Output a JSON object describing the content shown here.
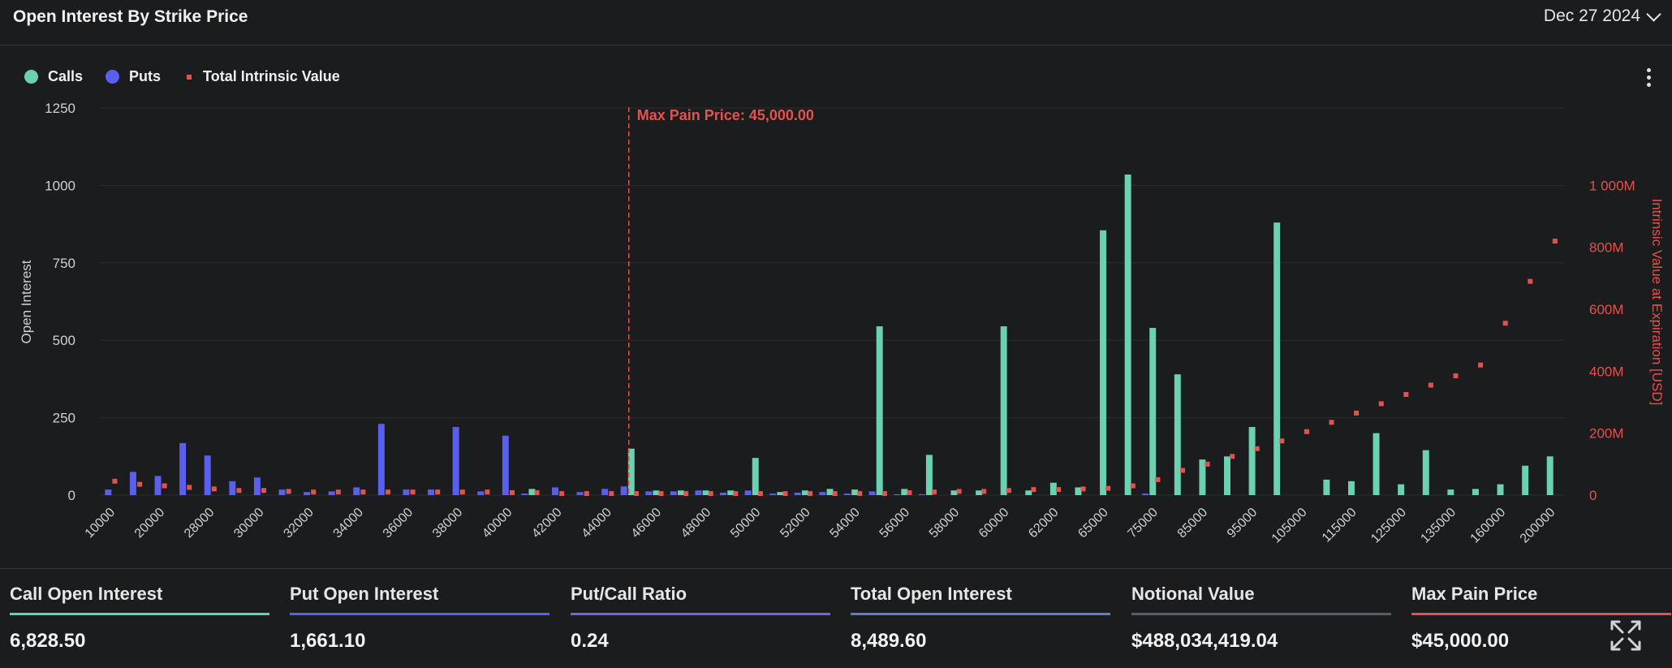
{
  "header": {
    "title": "Open Interest By Strike Price",
    "date": "Dec 27 2024"
  },
  "colors": {
    "calls": "#6ad2b0",
    "puts": "#5a5ff0",
    "intrinsic": "#e2534f",
    "background": "#1b1c1e"
  },
  "legend": {
    "calls": "Calls",
    "puts": "Puts",
    "intrinsic": "Total Intrinsic Value"
  },
  "icons": {
    "menu": "kebab-menu-icon",
    "date_dropdown": "chevron-down-icon",
    "expand": "expand-arrows-icon"
  },
  "chart_data": {
    "type": "bar",
    "title": "",
    "max_pain_label": "Max Pain Price: 45,000.00",
    "max_pain_category": "45000",
    "ylabel": "Open Interest",
    "y2label": "Intrinsic Value at Expiration [USD]",
    "ylim": [
      0,
      1250
    ],
    "y2lim": [
      0,
      1250
    ],
    "yticks": [
      "0",
      "250",
      "500",
      "750",
      "1000",
      "1250"
    ],
    "y2ticks": [
      "0",
      "200M",
      "400M",
      "600M",
      "800M",
      "1 000M"
    ],
    "y2tick_values": [
      0,
      200,
      400,
      600,
      800,
      1000
    ],
    "y2unit": "M USD",
    "xtick_labels": [
      "10000",
      "20000",
      "28000",
      "30000",
      "32000",
      "34000",
      "36000",
      "38000",
      "40000",
      "42000",
      "44000",
      "46000",
      "48000",
      "50000",
      "52000",
      "54000",
      "56000",
      "58000",
      "60000",
      "62000",
      "65000",
      "75000",
      "85000",
      "95000",
      "105000",
      "115000",
      "125000",
      "135000",
      "160000",
      "200000"
    ],
    "categories": [
      "10000",
      "15000",
      "20000",
      "25000",
      "28000",
      "29000",
      "30000",
      "31000",
      "32000",
      "33000",
      "34000",
      "35000",
      "36000",
      "37000",
      "38000",
      "39000",
      "40000",
      "41000",
      "42000",
      "43000",
      "44000",
      "45000",
      "46000",
      "47000",
      "48000",
      "49000",
      "50000",
      "51000",
      "52000",
      "53000",
      "54000",
      "55000",
      "56000",
      "57000",
      "58000",
      "59000",
      "60000",
      "61000",
      "62000",
      "64000",
      "65000",
      "70000",
      "75000",
      "80000",
      "85000",
      "90000",
      "95000",
      "100000",
      "105000",
      "110000",
      "115000",
      "120000",
      "125000",
      "130000",
      "135000",
      "140000",
      "160000",
      "180000",
      "200000"
    ],
    "series": [
      {
        "name": "Calls",
        "axis": "left",
        "values": [
          0,
          0,
          0,
          0,
          0,
          0,
          0,
          0,
          0,
          0,
          0,
          0,
          0,
          0,
          0,
          0,
          0,
          20,
          0,
          0,
          0,
          150,
          15,
          15,
          15,
          15,
          120,
          10,
          15,
          20,
          18,
          545,
          20,
          130,
          15,
          15,
          545,
          15,
          40,
          25,
          855,
          1035,
          540,
          390,
          115,
          125,
          220,
          880,
          0,
          50,
          45,
          200,
          35,
          145,
          18,
          20,
          35,
          95,
          125
        ]
      },
      {
        "name": "Puts",
        "axis": "left",
        "values": [
          18,
          75,
          62,
          168,
          128,
          45,
          57,
          18,
          10,
          12,
          25,
          230,
          18,
          18,
          220,
          12,
          192,
          5,
          25,
          10,
          20,
          28,
          12,
          12,
          15,
          8,
          15,
          5,
          8,
          10,
          5,
          12,
          3,
          3,
          0,
          0,
          0,
          0,
          0,
          0,
          0,
          0,
          5,
          0,
          0,
          0,
          0,
          0,
          0,
          0,
          0,
          0,
          0,
          0,
          0,
          0,
          0,
          0,
          0
        ]
      },
      {
        "name": "Total Intrinsic Value",
        "axis": "right",
        "values": [
          45,
          35,
          30,
          25,
          20,
          15,
          15,
          12,
          10,
          10,
          10,
          10,
          10,
          10,
          10,
          10,
          8,
          8,
          5,
          5,
          5,
          5,
          5,
          5,
          5,
          5,
          5,
          5,
          5,
          5,
          5,
          5,
          8,
          10,
          12,
          12,
          15,
          18,
          18,
          20,
          22,
          30,
          50,
          80,
          100,
          125,
          150,
          175,
          205,
          235,
          265,
          295,
          325,
          355,
          385,
          420,
          555,
          690,
          820
        ]
      }
    ]
  },
  "stats": [
    {
      "label": "Call Open Interest",
      "value": "6,828.50",
      "color": "#6ad2b0"
    },
    {
      "label": "Put Open Interest",
      "value": "1,661.10",
      "color": "#5a5ff0"
    },
    {
      "label": "Put/Call Ratio",
      "value": "0.24",
      "color": "#6f6ad8"
    },
    {
      "label": "Total Open Interest",
      "value": "8,489.60",
      "color": "#6d78c4"
    },
    {
      "label": "Notional Value",
      "value": "$488,034,419.04",
      "color": "#5a5d66"
    },
    {
      "label": "Max Pain Price",
      "value": "$45,000.00",
      "color": "#e2534f"
    }
  ]
}
